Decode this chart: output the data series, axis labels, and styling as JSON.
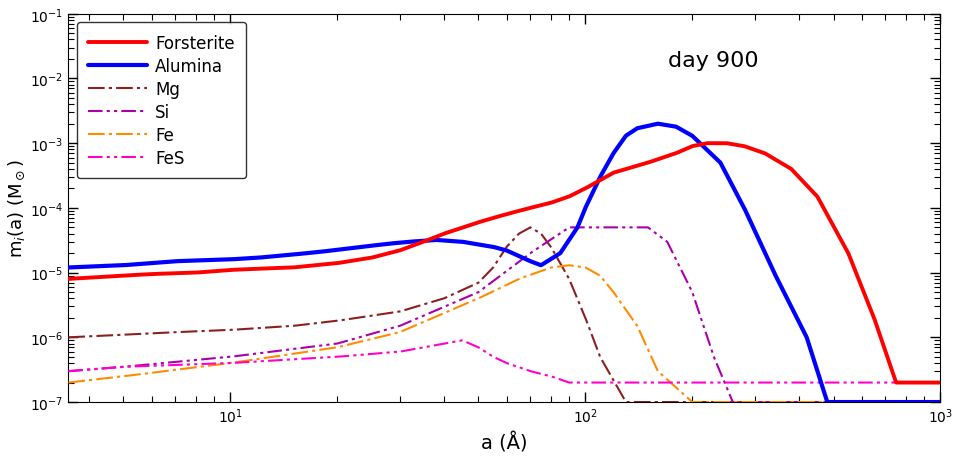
{
  "title_annotation": "day 900",
  "xlabel": "a (Å)",
  "xlim": [
    3.5,
    1000
  ],
  "ylim": [
    1e-07,
    0.1
  ],
  "legend_entries": [
    "Forsterite",
    "Alumina",
    "Mg",
    "Si",
    "Fe",
    "FeS"
  ],
  "colors": {
    "Forsterite": "#ff0000",
    "Alumina": "#0000ff",
    "Mg": "#8b2020",
    "Si": "#aa00aa",
    "Fe": "#ff8c00",
    "FeS": "#ff00cc"
  },
  "line_widths": {
    "Forsterite": 2.8,
    "Alumina": 3.0,
    "Mg": 1.5,
    "Si": 1.5,
    "Fe": 1.5,
    "FeS": 1.5
  },
  "forsterite_x": [
    3.5,
    5,
    6,
    8,
    10,
    12,
    15,
    20,
    25,
    30,
    35,
    40,
    50,
    55,
    60,
    65,
    70,
    80,
    90,
    100,
    120,
    150,
    180,
    200,
    220,
    250,
    280,
    320,
    380,
    450,
    550,
    650,
    750
  ],
  "forsterite_y": [
    8e-06,
    9e-06,
    9.5e-06,
    1e-05,
    1.1e-05,
    1.15e-05,
    1.2e-05,
    1.4e-05,
    1.7e-05,
    2.2e-05,
    3e-05,
    4e-05,
    6e-05,
    7e-05,
    8e-05,
    9e-05,
    0.0001,
    0.00012,
    0.00015,
    0.0002,
    0.00035,
    0.0005,
    0.0007,
    0.0009,
    0.001,
    0.001,
    0.0009,
    0.0007,
    0.0004,
    0.00015,
    2e-05,
    2e-06,
    2e-07
  ],
  "alumina_x": [
    3.5,
    5,
    7,
    10,
    12,
    15,
    18,
    22,
    28,
    32,
    38,
    45,
    55,
    60,
    65,
    70,
    75,
    85,
    95,
    100,
    110,
    120,
    130,
    140,
    160,
    180,
    200,
    240,
    280,
    340,
    420,
    480,
    550,
    600
  ],
  "alumina_y": [
    1.2e-05,
    1.3e-05,
    1.5e-05,
    1.6e-05,
    1.7e-05,
    1.9e-05,
    2.1e-05,
    2.4e-05,
    2.8e-05,
    3e-05,
    3.2e-05,
    3e-05,
    2.5e-05,
    2.2e-05,
    1.8e-05,
    1.5e-05,
    1.3e-05,
    2e-05,
    5e-05,
    0.0001,
    0.0003,
    0.0007,
    0.0013,
    0.0017,
    0.002,
    0.0018,
    0.0013,
    0.0005,
    0.0001,
    1e-05,
    1e-06,
    1e-07,
    1e-07,
    1e-07
  ],
  "mg_x": [
    3.5,
    5,
    7,
    10,
    15,
    20,
    30,
    40,
    50,
    55,
    60,
    65,
    70,
    75,
    80,
    90,
    100,
    110,
    130,
    150
  ],
  "mg_y": [
    1e-06,
    1.1e-06,
    1.2e-06,
    1.3e-06,
    1.5e-06,
    1.8e-06,
    2.5e-06,
    4e-06,
    7e-06,
    1.2e-05,
    2.5e-05,
    4e-05,
    5e-05,
    4e-05,
    2.5e-05,
    8e-06,
    2e-06,
    5e-07,
    1e-07,
    1e-07
  ],
  "si_x": [
    3.5,
    5,
    10,
    20,
    30,
    50,
    70,
    90,
    110,
    130,
    150,
    170,
    200,
    230,
    260
  ],
  "si_y": [
    3e-07,
    3.5e-07,
    5e-07,
    8e-07,
    1.5e-06,
    5e-06,
    2e-05,
    5e-05,
    5e-05,
    5e-05,
    5e-05,
    3e-05,
    5e-06,
    5e-07,
    1e-07
  ],
  "fe_x": [
    3.5,
    5,
    10,
    20,
    30,
    50,
    65,
    80,
    90,
    100,
    110,
    120,
    140,
    160,
    200,
    240
  ],
  "fe_y": [
    2e-07,
    2.5e-07,
    4e-07,
    7e-07,
    1.2e-06,
    4e-06,
    8e-06,
    1.2e-05,
    1.3e-05,
    1.2e-05,
    9e-06,
    5e-06,
    1.5e-06,
    3e-07,
    1e-07,
    1e-07
  ],
  "fes_x": [
    3.5,
    5,
    10,
    20,
    30,
    40,
    45,
    50,
    55,
    60,
    70,
    80,
    90,
    100,
    110,
    140,
    160,
    200
  ],
  "fes_y": [
    3e-07,
    3.5e-07,
    4e-07,
    5e-07,
    6e-07,
    8e-07,
    9e-07,
    7e-07,
    5e-07,
    4e-07,
    3e-07,
    2.5e-07,
    2e-07,
    2e-07,
    2e-07,
    2e-07,
    2e-07,
    2e-07
  ]
}
